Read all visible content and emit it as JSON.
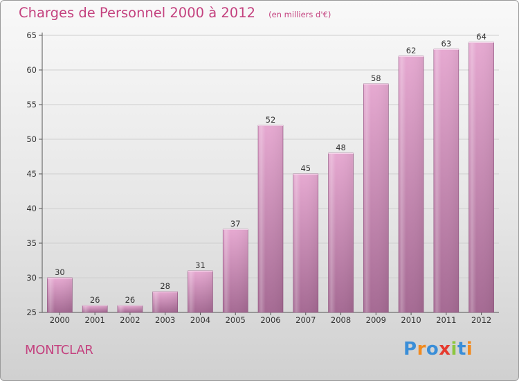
{
  "header": {
    "title": "Charges de Personnel 2000 à 2012",
    "subtitle": "(en milliers d'€)"
  },
  "footer": {
    "commune": "MONTCLAR",
    "logo_text": "Proxiti",
    "logo_colors": [
      "#3a8ed8",
      "#f28a1e",
      "#3a8ed8",
      "#e63a2e",
      "#8cc63f",
      "#3a8ed8",
      "#f28a1e"
    ]
  },
  "colors": {
    "title": "#c4427f",
    "bar_top": "#e6a9d1",
    "bar_bottom": "#a56a93",
    "bar_edge": "#8b4f7b",
    "axis": "#555555",
    "grid": "#cfcfcf"
  },
  "chart_data": {
    "type": "bar",
    "title": "Charges de Personnel 2000 à 2012",
    "subtitle": "(en milliers d'€)",
    "categories": [
      "2000",
      "2001",
      "2002",
      "2003",
      "2004",
      "2005",
      "2006",
      "2007",
      "2008",
      "2009",
      "2010",
      "2011",
      "2012"
    ],
    "values": [
      30,
      26,
      26,
      28,
      31,
      37,
      52,
      45,
      48,
      58,
      62,
      63,
      64
    ],
    "ylim": [
      25,
      65
    ],
    "yticks": [
      25,
      30,
      35,
      40,
      45,
      50,
      55,
      60,
      65
    ],
    "xlabel": "",
    "ylabel": "",
    "grid": true,
    "legend": "none"
  }
}
